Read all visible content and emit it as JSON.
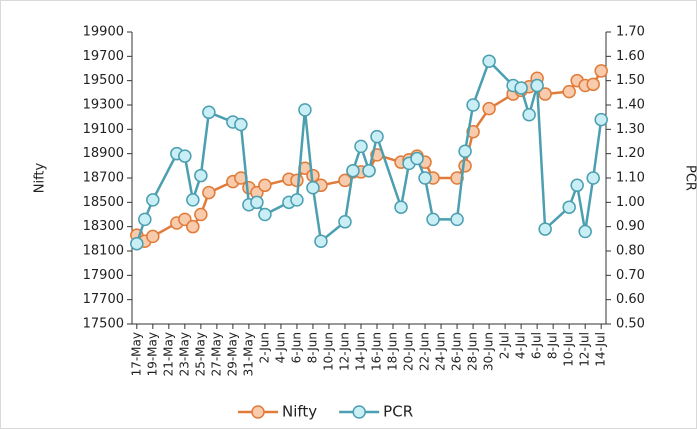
{
  "chart_data": {
    "type": "line",
    "y_label": "Nifty",
    "y2_label": "PCR",
    "x": [
      "17-May",
      "18-May",
      "19-May",
      "22-May",
      "23-May",
      "24-May",
      "25-May",
      "26-May",
      "29-May",
      "30-May",
      "31-May",
      "1-Jun",
      "2-Jun",
      "5-Jun",
      "6-Jun",
      "7-Jun",
      "8-Jun",
      "9-Jun",
      "12-Jun",
      "13-Jun",
      "14-Jun",
      "15-Jun",
      "16-Jun",
      "19-Jun",
      "20-Jun",
      "21-Jun",
      "22-Jun",
      "23-Jun",
      "26-Jun",
      "27-Jun",
      "28-Jun",
      "30-Jun",
      "3-Jul",
      "4-Jul",
      "5-Jul",
      "6-Jul",
      "7-Jul",
      "10-Jul",
      "11-Jul",
      "12-Jul",
      "13-Jul",
      "14-Jul"
    ],
    "xticks": [
      "17-May",
      "19-May",
      "21-May",
      "23-May",
      "25-May",
      "27-May",
      "29-May",
      "31-May",
      "2-Jun",
      "4-Jun",
      "6-Jun",
      "8-Jun",
      "10-Jun",
      "12-Jun",
      "14-Jun",
      "16-Jun",
      "18-Jun",
      "20-Jun",
      "22-Jun",
      "24-Jun",
      "26-Jun",
      "28-Jun",
      "30-Jun",
      "2-Jul",
      "4-Jul",
      "6-Jul",
      "8-Jul",
      "10-Jul",
      "12-Jul",
      "14-Jul"
    ],
    "series": [
      {
        "name": "Nifty",
        "color": "#e07b39",
        "marker_fill": "#f8cbad",
        "values": [
          18230,
          18180,
          18220,
          18330,
          18360,
          18300,
          18400,
          18580,
          18670,
          18700,
          18620,
          18580,
          18640,
          18690,
          18680,
          18780,
          18720,
          18640,
          18680,
          18750,
          18750,
          18760,
          18890,
          18830,
          18850,
          18880,
          18830,
          18700,
          18700,
          18800,
          19080,
          19270,
          19390,
          19420,
          19450,
          19520,
          19390,
          19410,
          19500,
          19460,
          19470,
          19580
        ]
      },
      {
        "name": "PCR",
        "color": "#4b9fb0",
        "marker_fill": "#c9eef5",
        "axis": "y2",
        "values": [
          0.83,
          0.93,
          1.01,
          1.2,
          1.19,
          1.01,
          1.11,
          1.37,
          1.33,
          1.32,
          0.99,
          1.0,
          0.95,
          1.0,
          1.01,
          1.38,
          1.06,
          0.84,
          0.92,
          1.13,
          1.23,
          1.13,
          1.27,
          0.98,
          1.16,
          1.18,
          1.1,
          0.93,
          0.93,
          1.21,
          1.4,
          1.58,
          1.48,
          1.47,
          1.36,
          1.48,
          0.89,
          0.98,
          1.07,
          0.88,
          1.1,
          1.34
        ]
      }
    ],
    "ylim": [
      17500,
      19900
    ],
    "yticks": [
      17500,
      17700,
      17900,
      18100,
      18300,
      18500,
      18700,
      18900,
      19100,
      19300,
      19500,
      19700,
      19900
    ],
    "y2lim": [
      0.5,
      1.7
    ],
    "y2ticks": [
      {
        "value": 0.5,
        "label": "0.50"
      },
      {
        "value": 0.6,
        "label": "0.60"
      },
      {
        "value": 0.7,
        "label": "0.70"
      },
      {
        "value": 0.8,
        "label": "0.80"
      },
      {
        "value": 0.9,
        "label": "0.90"
      },
      {
        "value": 1.0,
        "label": "1.00"
      },
      {
        "value": 1.1,
        "label": "1.10"
      },
      {
        "value": 1.2,
        "label": "1.20"
      },
      {
        "value": 1.3,
        "label": "1.30"
      },
      {
        "value": 1.4,
        "label": "1.40"
      },
      {
        "value": 1.5,
        "label": "1.50"
      },
      {
        "value": 1.6,
        "label": "1.60"
      },
      {
        "value": 1.7,
        "label": "1.70"
      }
    ],
    "legend": "bottom"
  }
}
